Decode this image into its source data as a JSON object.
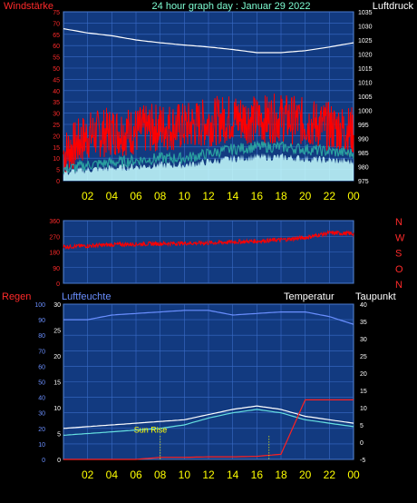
{
  "header": {
    "title": "24 hour graph day : Januar 29 2022",
    "left_label": "Windstärke",
    "right_label": "Luftdruck"
  },
  "colors": {
    "background": "#000000",
    "plot_bg": "#123a80",
    "grid": "#3a6cc8",
    "axis_text_left": "#ff2a2a",
    "axis_text_right": "#ffffff",
    "time_text": "#ffff00",
    "wind_gust": "#ff0000",
    "wind_avg": "#c8ffff",
    "wind_mid": "#2aa0a0",
    "pressure": "#ffffff",
    "title_text": "#7fffd4",
    "humidity": "#6a8fff",
    "temperature": "#ffffff",
    "dewpoint": "#66e0e0",
    "rain": "#ff2020"
  },
  "time_axis": [
    "02",
    "04",
    "06",
    "08",
    "10",
    "12",
    "14",
    "16",
    "18",
    "20",
    "22",
    "00"
  ],
  "chart_data": [
    {
      "type": "line",
      "name": "wind_pressure",
      "left_axis": {
        "label": "Windstärke",
        "ticks": [
          0,
          5,
          10,
          15,
          20,
          25,
          30,
          35,
          40,
          45,
          50,
          55,
          60,
          65,
          70,
          75
        ],
        "ylim": [
          0,
          75
        ]
      },
      "right_axis": {
        "label": "Luftdruck",
        "ticks": [
          975,
          980,
          985,
          990,
          995,
          1000,
          1005,
          1010,
          1015,
          1020,
          1025,
          1030,
          1035
        ],
        "ylim": [
          975,
          1035
        ]
      },
      "x_hours": [
        0,
        2,
        4,
        6,
        8,
        10,
        12,
        14,
        16,
        18,
        20,
        22,
        24
      ],
      "series": [
        {
          "name": "Luftdruck",
          "axis": "right",
          "values": [
            1029,
            1027.5,
            1026.5,
            1025,
            1024,
            1023.2,
            1022.5,
            1021.6,
            1020.5,
            1020.5,
            1021.2,
            1022.5,
            1024
          ]
        },
        {
          "name": "Böen",
          "axis": "left",
          "values": [
            12,
            20,
            22,
            22,
            24,
            24,
            26,
            28,
            27,
            28,
            26,
            24,
            22
          ]
        },
        {
          "name": "Windstärke",
          "axis": "left",
          "values": [
            5,
            7,
            8,
            9,
            10,
            10,
            12,
            14,
            15,
            15,
            14,
            13,
            12
          ]
        }
      ]
    },
    {
      "type": "scatter",
      "name": "wind_direction",
      "left_axis": {
        "ticks": [
          0,
          90,
          180,
          270,
          360
        ],
        "ylim": [
          0,
          360
        ]
      },
      "right_labels": [
        "N",
        "W",
        "S",
        "O",
        "N"
      ],
      "x_hours": [
        0,
        2,
        4,
        6,
        8,
        10,
        12,
        14,
        16,
        18,
        20,
        22,
        24
      ],
      "values": [
        210,
        215,
        222,
        225,
        228,
        230,
        232,
        237,
        242,
        250,
        262,
        290,
        285
      ]
    },
    {
      "type": "line",
      "name": "rain_humidity_temp",
      "labels": {
        "left": "Regen",
        "left2": "Luftfeuchte",
        "right": "Temperatur",
        "right2": "Taupunkt",
        "annotation": "Sun Rise"
      },
      "left_axis": {
        "ticks": [
          0,
          10,
          20,
          30,
          40,
          50,
          60,
          70,
          80,
          90,
          100
        ],
        "ylim": [
          0,
          100
        ]
      },
      "left2_axis": {
        "ticks": [
          0,
          5,
          10,
          15,
          20,
          25,
          30
        ],
        "ylim": [
          0,
          30
        ]
      },
      "right_axis": {
        "ticks": [
          -5,
          0,
          5,
          10,
          15,
          20,
          25,
          30,
          35,
          40
        ],
        "ylim": [
          -5,
          40
        ]
      },
      "x_hours": [
        0,
        2,
        4,
        6,
        8,
        10,
        12,
        14,
        16,
        18,
        20,
        22,
        24
      ],
      "series": [
        {
          "name": "Luftfeuchte",
          "axis": "left",
          "values": [
            90,
            90,
            93,
            94,
            95,
            96,
            96,
            93,
            94,
            95,
            95,
            92,
            87
          ]
        },
        {
          "name": "Temperatur",
          "axis": "right",
          "values": [
            4,
            4.5,
            5,
            5.5,
            6,
            6.5,
            8,
            9.5,
            10.5,
            9.5,
            7.5,
            6.5,
            5.5
          ]
        },
        {
          "name": "Taupunkt",
          "axis": "right",
          "values": [
            2,
            2.5,
            3,
            3.5,
            4,
            5,
            7,
            8.5,
            9.5,
            8.5,
            6.5,
            5.5,
            4.5
          ]
        },
        {
          "name": "Regen",
          "axis": "left2",
          "values": [
            0,
            0,
            0,
            0,
            0.4,
            0.4,
            0.5,
            0.5,
            0.6,
            1.0,
            11.5,
            11.5,
            11.5
          ]
        }
      ],
      "markers_hours": [
        8,
        17
      ]
    }
  ]
}
